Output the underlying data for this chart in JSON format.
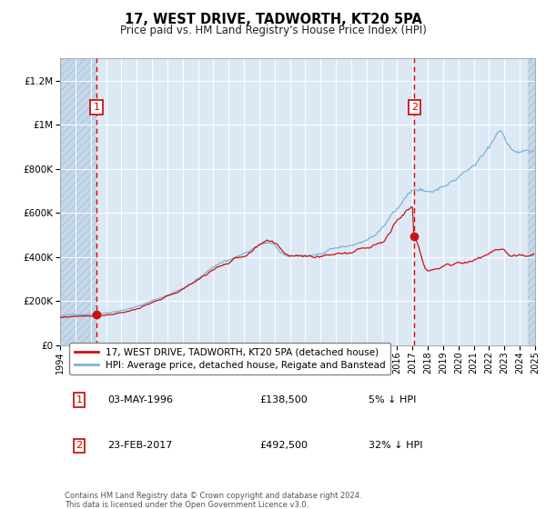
{
  "title": "17, WEST DRIVE, TADWORTH, KT20 5PA",
  "subtitle": "Price paid vs. HM Land Registry's House Price Index (HPI)",
  "legend_line1": "17, WEST DRIVE, TADWORTH, KT20 5PA (detached house)",
  "legend_line2": "HPI: Average price, detached house, Reigate and Banstead",
  "transaction1_date": "03-MAY-1996",
  "transaction1_price": 138500,
  "transaction1_pct": "5% ↓ HPI",
  "transaction2_date": "23-FEB-2017",
  "transaction2_price": 492500,
  "transaction2_pct": "32% ↓ HPI",
  "footnote": "Contains HM Land Registry data © Crown copyright and database right 2024.\nThis data is licensed under the Open Government Licence v3.0.",
  "hpi_color": "#7ab3d4",
  "price_color": "#cc1111",
  "dot_color": "#cc1111",
  "bg_color": "#dce9f5",
  "grid_color": "#ffffff",
  "vline_color": "#dd0000",
  "ylim": [
    0,
    1300000
  ],
  "yticks": [
    0,
    200000,
    400000,
    600000,
    800000,
    1000000,
    1200000
  ],
  "ytick_labels": [
    "£0",
    "£200K",
    "£400K",
    "£600K",
    "£800K",
    "£1M",
    "£1.2M"
  ],
  "xstart_year": 1994,
  "xend_year": 2025,
  "transaction1_year": 1996.37,
  "transaction2_year": 2017.12
}
